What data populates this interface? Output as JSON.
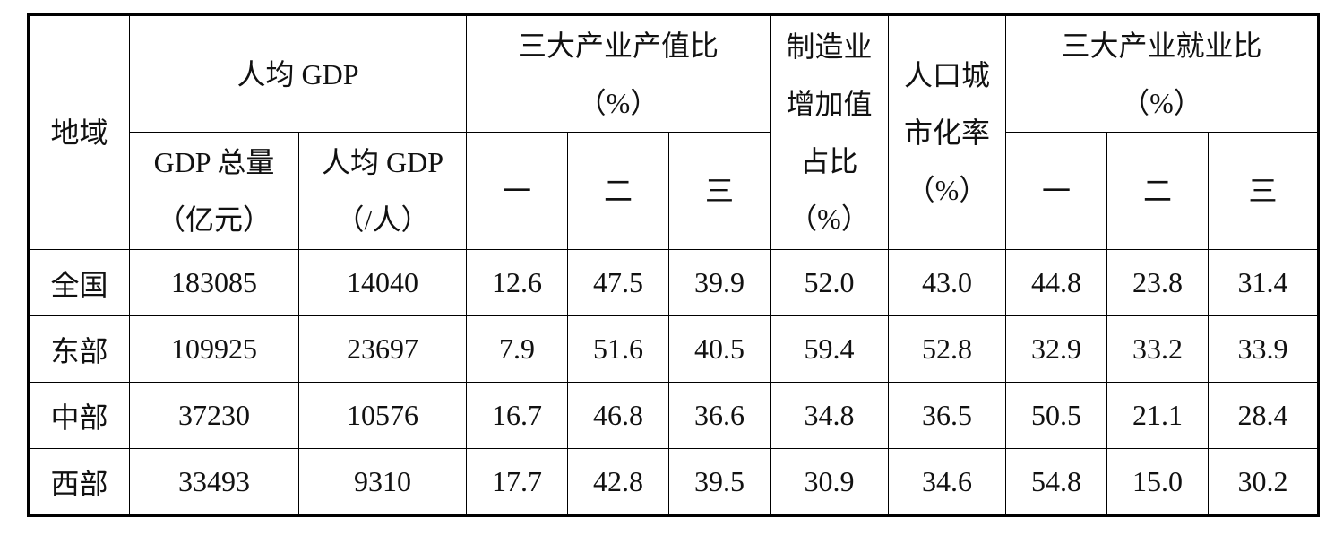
{
  "table": {
    "header_rows": [
      [
        [
          "地域"
        ],
        [
          "人均 GDP"
        ],
        [
          "三大产业产值比",
          "（%）"
        ],
        [
          "制造业",
          "增加值",
          "占比",
          "（%）"
        ],
        [
          "人口城",
          "市化率",
          "（%）"
        ],
        [
          "三大产业就业比",
          "（%）"
        ]
      ],
      [
        [
          "GDP 总量",
          "（亿元）"
        ],
        [
          "人均 GDP",
          "（/人）"
        ],
        [
          "一"
        ],
        [
          "二"
        ],
        [
          "三"
        ],
        [
          "一"
        ],
        [
          "二"
        ],
        [
          "三"
        ]
      ]
    ],
    "rows": [
      [
        "全国",
        "183085",
        "14040",
        "12.6",
        "47.5",
        "39.9",
        "52.0",
        "43.0",
        "44.8",
        "23.8",
        "31.4"
      ],
      [
        "东部",
        "109925",
        "23697",
        "7.9",
        "51.6",
        "40.5",
        "59.4",
        "52.8",
        "32.9",
        "33.2",
        "33.9"
      ],
      [
        "中部",
        "37230",
        "10576",
        "16.7",
        "46.8",
        "36.6",
        "34.8",
        "36.5",
        "50.5",
        "21.1",
        "28.4"
      ],
      [
        "西部",
        "33493",
        "9310",
        "17.7",
        "42.8",
        "39.5",
        "30.9",
        "34.6",
        "54.8",
        "15.0",
        "30.2"
      ]
    ]
  }
}
